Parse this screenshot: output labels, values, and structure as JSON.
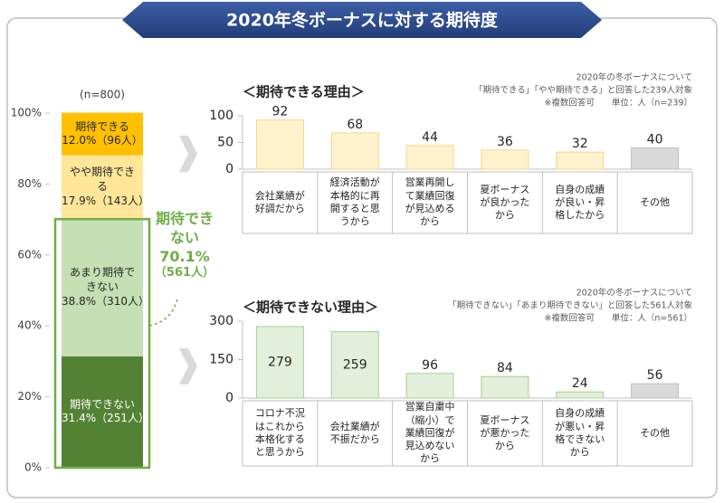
{
  "title": "2020年冬ボーナスに対する期待度",
  "chart_data": [
    {
      "type": "stacked_bar",
      "subtitle": "(n=800)",
      "ylim": [
        0,
        100
      ],
      "yticks": [
        {
          "value": 0,
          "label": "0%"
        },
        {
          "value": 20,
          "label": "20%"
        },
        {
          "value": 40,
          "label": "40%"
        },
        {
          "value": 60,
          "label": "60%"
        },
        {
          "value": 80,
          "label": "80%"
        },
        {
          "value": 100,
          "label": "100%"
        }
      ],
      "series": [
        {
          "name": "期待できない",
          "color": "#548235",
          "values": [
            31.4
          ],
          "value_labels": [
            "31.4%（251人）"
          ]
        },
        {
          "name": "あまり期待できない",
          "color": "#c5e0b4",
          "values": [
            38.8
          ],
          "value_labels": [
            "38.8%（310人）"
          ]
        },
        {
          "name": "やや期待できる",
          "color": "#ffe699",
          "values": [
            17.9
          ],
          "value_labels": [
            "17.9%（143人）"
          ]
        },
        {
          "name": "期待できる",
          "color": "#ffc000",
          "values": [
            12.0
          ],
          "value_labels": [
            "12.0%（96人）"
          ]
        }
      ],
      "group": {
        "name": "期待できない",
        "value": 70.1,
        "value_label": "70.1%",
        "count": "（561人）",
        "color": "#70ad47"
      }
    },
    {
      "type": "bar",
      "title": "＜期待できる理由＞",
      "notes": [
        "2020年の冬ボーナスについて",
        "「期待できる」「やや期待できる」と回答した239人対象",
        "※複数回答可　　単位：人（n=239）"
      ],
      "categories": [
        "会社業績が好調だから",
        "経済活動が本格的に再開すると思うから",
        "営業再開して業績回復が見込めるから",
        "夏ボーナスが良かったから",
        "自身の成績が良い・昇格したから",
        "その他"
      ],
      "values": [
        92,
        68,
        44,
        36,
        32,
        40
      ],
      "colors": [
        "#fff2cc",
        "#fff2cc",
        "#fff2cc",
        "#fff2cc",
        "#fff2cc",
        "#d9d9d9"
      ],
      "ylim": [
        0,
        100
      ],
      "yticks": [
        0,
        50,
        100
      ]
    },
    {
      "type": "bar",
      "title": "＜期待できない理由＞",
      "notes": [
        "2020年の冬ボーナスについて",
        "「期待できない」「あまり期待できない」と回答した561人対象",
        "※複数回答可　　単位：人（n=561）"
      ],
      "categories": [
        "コロナ不況はこれから本格化すると思うから",
        "会社業績が不振だから",
        "営業自粛中（縮小）で業績回復が見込めないから",
        "夏ボーナスが悪かったから",
        "自身の成績が悪い・昇格できないから",
        "その他"
      ],
      "values": [
        279,
        259,
        96,
        84,
        24,
        56
      ],
      "colors": [
        "#e2efda",
        "#e2efda",
        "#e2efda",
        "#e2efda",
        "#e2efda",
        "#d9d9d9"
      ],
      "ylim": [
        0,
        300
      ],
      "yticks": [
        0,
        150,
        300
      ]
    }
  ]
}
